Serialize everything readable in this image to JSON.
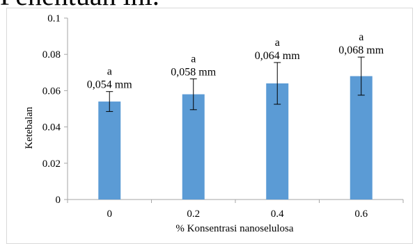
{
  "caption": {
    "text": "Penentuan ini."
  },
  "chart_data": {
    "type": "bar",
    "categories": [
      "0",
      "0.2",
      "0.4",
      "0.6"
    ],
    "values": [
      0.054,
      0.058,
      0.064,
      0.068
    ],
    "error": [
      0.0055,
      0.0085,
      0.0115,
      0.0105
    ],
    "letters": [
      "a",
      "a",
      "a",
      "a"
    ],
    "value_labels": [
      "0,054 mm",
      "0,058 mm",
      "0,064 mm",
      "0,068 mm"
    ],
    "title": "",
    "xlabel": "% Konsentrasi nanoselulosa",
    "ylabel": "Ketebalan",
    "ylim": [
      0,
      0.1
    ],
    "yticks": [
      0,
      0.02,
      0.04,
      0.06,
      0.08,
      0.1
    ],
    "ytick_labels": [
      "0",
      "0.02",
      "0.04",
      "0.06",
      "0.08",
      "0.1"
    ],
    "bar_color": "#5b9bd5",
    "grid": false,
    "legend": "none"
  }
}
